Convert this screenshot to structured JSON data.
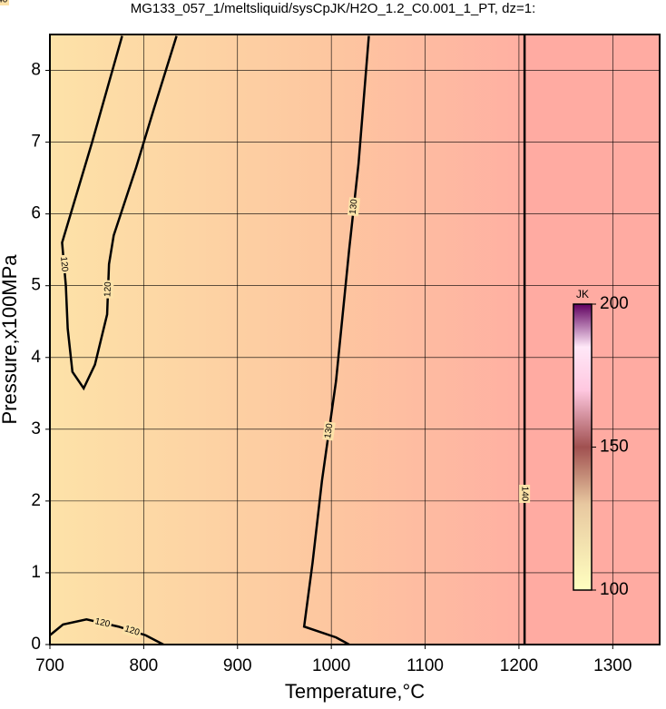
{
  "chart_data": {
    "type": "contour",
    "title": "MG133_057_1/meltsliquid/sysCpJK/H2O_1.2_C0.001_1_PT, dz=1:",
    "x_label": "Temperature,°C",
    "y_label": "Pressure,x100MPa",
    "xlim": [
      700,
      1350
    ],
    "xticks": [
      700,
      800,
      900,
      1000,
      1100,
      1200,
      1300
    ],
    "ylim": [
      0,
      8.5
    ],
    "yticks": [
      0,
      1,
      2,
      3,
      4,
      5,
      6,
      7,
      8
    ],
    "grid": true,
    "colorbar": {
      "label": "JK",
      "clim": [
        100,
        200
      ],
      "ticks": [
        100,
        150,
        200
      ]
    },
    "contours": [
      {
        "level": 120,
        "x": [
          835,
          811,
          792,
          768,
          763,
          761,
          748,
          736,
          724,
          719,
          717,
          713,
          745,
          777
        ],
        "y": [
          8.48,
          7.47,
          6.65,
          5.7,
          5.3,
          4.6,
          3.9,
          3.57,
          3.8,
          4.4,
          5.0,
          5.6,
          7.0,
          8.48
        ]
      },
      {
        "level": 120,
        "x": [
          700,
          714,
          739,
          773,
          802,
          821
        ],
        "y": [
          0.13,
          0.28,
          0.35,
          0.25,
          0.13,
          0
        ]
      },
      {
        "level": 130,
        "x": [
          1040,
          1029,
          1019,
          1005,
          990,
          980,
          971,
          1005,
          1019
        ],
        "y": [
          8.48,
          6.7,
          5.5,
          3.67,
          2.28,
          1.14,
          0.25,
          0.1,
          0
        ]
      },
      {
        "level": 140,
        "x": [
          1206,
          1206,
          1206
        ],
        "y": [
          8.5,
          4.2,
          0
        ]
      }
    ]
  }
}
